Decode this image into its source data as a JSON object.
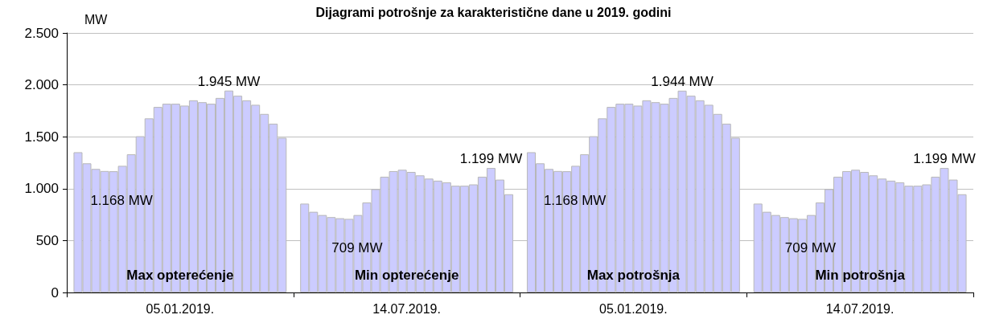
{
  "chart_data": {
    "type": "bar",
    "title": "Dijagrami potrošnje za karakteristične dane u 2019. godini",
    "ylabel": "MW",
    "categories": [
      "05.01.2019.",
      "14.07.2019.",
      "05.01.2019.",
      "14.07.2019."
    ],
    "color": "#ccccff",
    "series": [
      {
        "values": [
          1351,
          856,
          1351,
          856
        ]
      },
      {
        "values": [
          1244,
          777,
          1244,
          777
        ]
      },
      {
        "values": [
          1190,
          746,
          1190,
          746
        ]
      },
      {
        "values": [
          1170,
          726,
          1170,
          726
        ]
      },
      {
        "values": [
          1168,
          715,
          1168,
          715
        ],
        "value_labels": [
          "1.168 MW",
          null,
          "1.168 MW",
          null
        ]
      },
      {
        "values": [
          1220,
          709,
          1220,
          709
        ],
        "value_labels": [
          null,
          "709 MW",
          null,
          "709 MW"
        ]
      },
      {
        "values": [
          1331,
          746,
          1331,
          746
        ]
      },
      {
        "values": [
          1505,
          867,
          1505,
          867
        ]
      },
      {
        "values": [
          1677,
          995,
          1677,
          995
        ]
      },
      {
        "values": [
          1787,
          1115,
          1787,
          1115
        ]
      },
      {
        "values": [
          1818,
          1169,
          1818,
          1169
        ]
      },
      {
        "values": [
          1818,
          1182,
          1818,
          1182
        ]
      },
      {
        "values": [
          1800,
          1161,
          1800,
          1161
        ]
      },
      {
        "values": [
          1851,
          1128,
          1851,
          1128
        ]
      },
      {
        "values": [
          1833,
          1097,
          1833,
          1097
        ]
      },
      {
        "values": [
          1818,
          1077,
          1818,
          1077
        ]
      },
      {
        "values": [
          1874,
          1061,
          1874,
          1061
        ]
      },
      {
        "values": [
          1945,
          1028,
          1944,
          1028
        ],
        "value_labels": [
          "1.945 MW",
          null,
          "1.944 MW",
          null
        ]
      },
      {
        "values": [
          1895,
          1028,
          1895,
          1028
        ]
      },
      {
        "values": [
          1851,
          1041,
          1851,
          1041
        ]
      },
      {
        "values": [
          1808,
          1115,
          1808,
          1115
        ]
      },
      {
        "values": [
          1720,
          1199,
          1720,
          1199
        ],
        "value_labels": [
          null,
          "1.199 MW",
          null,
          "1.199 MW"
        ]
      },
      {
        "values": [
          1626,
          1087,
          1626,
          1087
        ]
      },
      {
        "values": [
          1490,
          946,
          1490,
          946
        ]
      }
    ],
    "ylim": [
      0,
      2500
    ],
    "yticks": [
      0,
      500,
      {
        "value": 1000,
        "label": "1.000"
      },
      {
        "value": 1500,
        "label": "1.500"
      },
      {
        "value": 2000,
        "label": "2.000"
      },
      {
        "value": 2500,
        "label": "2.500"
      }
    ],
    "grid": "y",
    "annotations": [
      "Max opterećenje",
      "Min opterećenje",
      "Max potrošnja",
      "Min potrošnja"
    ]
  }
}
